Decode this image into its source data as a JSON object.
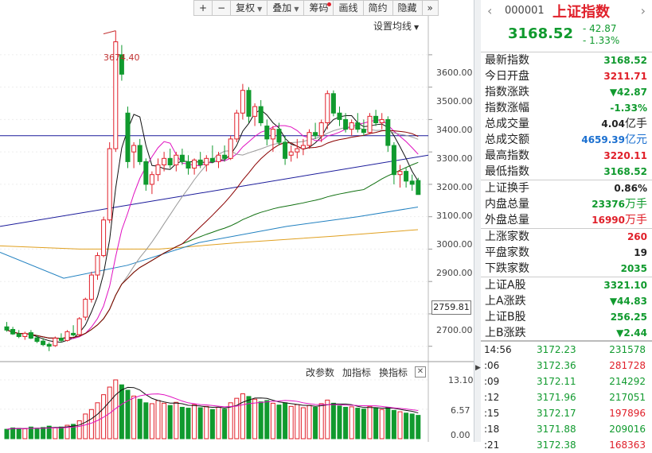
{
  "toolbar": {
    "buttons": [
      "+",
      "−",
      "复权",
      "叠加",
      "筹码",
      "画线",
      "简约",
      "隐藏",
      "»"
    ]
  },
  "chart": {
    "ma_setting_label": "设置均线",
    "annotation": "3674.40",
    "price_axis": [
      "3600.00",
      "3500.00",
      "3400.00",
      "3300.00",
      "3200.00",
      "3100.00",
      "3000.00",
      "2900.00",
      "2700.00"
    ],
    "current_price_label": "2759.81",
    "volume_axis": [
      "13.10",
      "6.57",
      "0.00"
    ],
    "volume_tools": [
      "改参数",
      "加指标",
      "换指标"
    ],
    "volume_close": "✕"
  },
  "chart_data": {
    "type": "candlestick",
    "title": "",
    "price_range": [
      2660,
      3720
    ],
    "volume_range": [
      0,
      13.1
    ],
    "annotation": {
      "label": "3674.40",
      "value": 3674.4
    },
    "horizontal_line": 3350,
    "trend_line_from": 3070,
    "trend_line_to": 3290,
    "candles_ohlc": [
      [
        2760,
        2775,
        2745,
        2750
      ],
      [
        2752,
        2760,
        2735,
        2738
      ],
      [
        2738,
        2750,
        2725,
        2730
      ],
      [
        2730,
        2745,
        2720,
        2740
      ],
      [
        2742,
        2750,
        2722,
        2725
      ],
      [
        2726,
        2735,
        2710,
        2715
      ],
      [
        2716,
        2725,
        2700,
        2705
      ],
      [
        2706,
        2712,
        2685,
        2700
      ],
      [
        2702,
        2730,
        2698,
        2725
      ],
      [
        2725,
        2740,
        2712,
        2718
      ],
      [
        2718,
        2750,
        2715,
        2745
      ],
      [
        2740,
        2765,
        2730,
        2735
      ],
      [
        2736,
        2790,
        2732,
        2785
      ],
      [
        2790,
        2850,
        2780,
        2845
      ],
      [
        2845,
        2930,
        2835,
        2920
      ],
      [
        2920,
        2990,
        2905,
        2980
      ],
      [
        2980,
        3100,
        2975,
        3090
      ],
      [
        3090,
        3330,
        3080,
        3310
      ],
      [
        3310,
        3674,
        3300,
        3640
      ],
      [
        3600,
        3630,
        3520,
        3540
      ],
      [
        3420,
        3440,
        3250,
        3270
      ],
      [
        3300,
        3330,
        3250,
        3320
      ],
      [
        3320,
        3340,
        3260,
        3270
      ],
      [
        3270,
        3280,
        3180,
        3200
      ],
      [
        3200,
        3240,
        3170,
        3230
      ],
      [
        3230,
        3280,
        3210,
        3260
      ],
      [
        3260,
        3300,
        3240,
        3280
      ],
      [
        3280,
        3310,
        3250,
        3260
      ],
      [
        3260,
        3300,
        3240,
        3290
      ],
      [
        3290,
        3310,
        3260,
        3270
      ],
      [
        3270,
        3290,
        3230,
        3250
      ],
      [
        3250,
        3280,
        3230,
        3275
      ],
      [
        3275,
        3300,
        3250,
        3260
      ],
      [
        3260,
        3290,
        3240,
        3280
      ],
      [
        3280,
        3320,
        3265,
        3270
      ],
      [
        3270,
        3300,
        3250,
        3290
      ],
      [
        3290,
        3320,
        3270,
        3280
      ],
      [
        3280,
        3350,
        3275,
        3340
      ],
      [
        3340,
        3430,
        3330,
        3420
      ],
      [
        3420,
        3510,
        3400,
        3490
      ],
      [
        3490,
        3500,
        3390,
        3410
      ],
      [
        3410,
        3450,
        3380,
        3440
      ],
      [
        3440,
        3460,
        3380,
        3390
      ],
      [
        3380,
        3400,
        3320,
        3340
      ],
      [
        3340,
        3380,
        3300,
        3370
      ],
      [
        3370,
        3390,
        3320,
        3330
      ],
      [
        3330,
        3350,
        3260,
        3280
      ],
      [
        3290,
        3320,
        3270,
        3300
      ],
      [
        3300,
        3340,
        3280,
        3310
      ],
      [
        3310,
        3340,
        3290,
        3320
      ],
      [
        3320,
        3370,
        3310,
        3360
      ],
      [
        3360,
        3390,
        3340,
        3350
      ],
      [
        3350,
        3400,
        3330,
        3390
      ],
      [
        3390,
        3490,
        3370,
        3480
      ],
      [
        3480,
        3490,
        3410,
        3420
      ],
      [
        3420,
        3440,
        3380,
        3400
      ],
      [
        3400,
        3420,
        3360,
        3370
      ],
      [
        3370,
        3400,
        3350,
        3390
      ],
      [
        3390,
        3420,
        3360,
        3370
      ],
      [
        3370,
        3400,
        3350,
        3360
      ],
      [
        3360,
        3420,
        3355,
        3410
      ],
      [
        3410,
        3430,
        3380,
        3390
      ],
      [
        3390,
        3420,
        3370,
        3400
      ],
      [
        3400,
        3410,
        3300,
        3320
      ],
      [
        3320,
        3330,
        3200,
        3230
      ],
      [
        3230,
        3260,
        3190,
        3240
      ],
      [
        3240,
        3250,
        3190,
        3210
      ],
      [
        3210,
        3230,
        3180,
        3200
      ],
      [
        3211.71,
        3220.11,
        3168.52,
        3168.52
      ]
    ],
    "volume": [
      2.1,
      2.4,
      2.3,
      2.2,
      2.6,
      2.2,
      2.5,
      2.8,
      2.4,
      2.6,
      3.0,
      3.2,
      4.0,
      5.5,
      6.5,
      8.0,
      9.8,
      11.5,
      13.1,
      12.0,
      10.8,
      9.5,
      8.8,
      8.0,
      7.8,
      8.5,
      7.9,
      7.4,
      8.1,
      7.0,
      6.8,
      7.6,
      6.9,
      7.2,
      6.5,
      7.0,
      6.6,
      8.0,
      9.0,
      10.0,
      9.4,
      8.8,
      8.2,
      8.5,
      7.9,
      7.5,
      8.0,
      7.2,
      7.6,
      6.9,
      7.4,
      7.0,
      7.8,
      8.6,
      7.9,
      7.3,
      7.0,
      7.1,
      6.8,
      6.6,
      7.2,
      6.9,
      6.5,
      7.0,
      6.3,
      6.0,
      5.7,
      5.5,
      5.2
    ]
  },
  "quote": {
    "code": "000001",
    "name": "上证指数",
    "price": "3168.52",
    "change": "- 42.87",
    "change_pct": "- 1.33%",
    "nav_left": "‹",
    "nav_right": "›",
    "rows": [
      {
        "label": "最新指数",
        "value": "3168.52",
        "cls": "dn"
      },
      {
        "label": "今日开盘",
        "value": "3211.71",
        "cls": "up"
      },
      {
        "label": "指数涨跌",
        "value": "▼42.87",
        "cls": "dn"
      },
      {
        "label": "指数涨幅",
        "value": "-1.33%",
        "cls": "dn"
      },
      {
        "label": "总成交量",
        "value": "4.04",
        "unit": "亿手",
        "cls": "nt"
      },
      {
        "label": "总成交额",
        "value": "4659.39",
        "unit": "亿元",
        "cls": "bl"
      },
      {
        "label": "最高指数",
        "value": "3220.11",
        "cls": "up"
      },
      {
        "label": "最低指数",
        "value": "3168.52",
        "cls": "dn"
      },
      {
        "label": "上证换手",
        "value": "0.86%",
        "cls": "nt"
      },
      {
        "label": "内盘总量",
        "value": "23376",
        "unit": "万手",
        "cls": "dn"
      },
      {
        "label": "外盘总量",
        "value": "16990",
        "unit": "万手",
        "cls": "up"
      },
      {
        "label": "上涨家数",
        "value": "260",
        "cls": "up"
      },
      {
        "label": "平盘家数",
        "value": "19",
        "cls": "nt"
      },
      {
        "label": "下跌家数",
        "value": "2035",
        "cls": "dn"
      },
      {
        "label": "上证A股",
        "value": "3321.10",
        "cls": "dn"
      },
      {
        "label": "上A涨跌",
        "value": "▼44.83",
        "cls": "dn"
      },
      {
        "label": "上证B股",
        "value": "256.25",
        "cls": "dn"
      },
      {
        "label": "上B涨跌",
        "value": "▼2.44",
        "cls": "dn"
      }
    ],
    "trades": [
      {
        "time": "14:56",
        "price": "3172.23",
        "vol": "231578",
        "cls": "dn"
      },
      {
        "time": ":06",
        "price": "3172.36",
        "vol": "281728",
        "cls": "up"
      },
      {
        "time": ":09",
        "price": "3172.11",
        "vol": "214292",
        "cls": "dn"
      },
      {
        "time": ":12",
        "price": "3171.96",
        "vol": "217051",
        "cls": "dn"
      },
      {
        "time": ":15",
        "price": "3172.17",
        "vol": "197896",
        "cls": "up"
      },
      {
        "time": ":18",
        "price": "3171.88",
        "vol": "209016",
        "cls": "dn"
      },
      {
        "time": ":21",
        "price": "3172.38",
        "vol": "168363",
        "cls": "up"
      }
    ]
  },
  "colors": {
    "up": "#e0202a",
    "down": "#109a2e",
    "blue_line": "#1a1a9a"
  }
}
